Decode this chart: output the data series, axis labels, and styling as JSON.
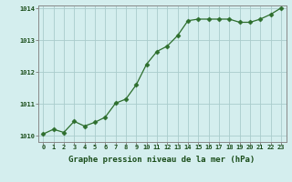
{
  "x": [
    0,
    1,
    2,
    3,
    4,
    5,
    6,
    7,
    8,
    9,
    10,
    11,
    12,
    13,
    14,
    15,
    16,
    17,
    18,
    19,
    20,
    21,
    22,
    23
  ],
  "y": [
    1010.05,
    1010.2,
    1010.1,
    1010.45,
    1010.3,
    1010.42,
    1010.58,
    1011.02,
    1011.15,
    1011.6,
    1012.25,
    1012.65,
    1012.82,
    1013.15,
    1013.62,
    1013.67,
    1013.67,
    1013.67,
    1013.67,
    1013.57,
    1013.57,
    1013.67,
    1013.82,
    1014.02
  ],
  "line_color": "#2d6e2d",
  "marker": "D",
  "marker_size": 2.5,
  "bg_color": "#d4eeee",
  "grid_color": "#aacccc",
  "xlabel": "Graphe pression niveau de la mer (hPa)",
  "xlabel_color": "#1a4d1a",
  "tick_color": "#1a4d1a",
  "axis_color": "#888888",
  "ylim": [
    1009.8,
    1014.1
  ],
  "yticks": [
    1010,
    1011,
    1012,
    1013,
    1014
  ],
  "xlim": [
    -0.5,
    23.5
  ],
  "xticks": [
    0,
    1,
    2,
    3,
    4,
    5,
    6,
    7,
    8,
    9,
    10,
    11,
    12,
    13,
    14,
    15,
    16,
    17,
    18,
    19,
    20,
    21,
    22,
    23
  ],
  "tick_fontsize": 5.0,
  "xlabel_fontsize": 6.5
}
